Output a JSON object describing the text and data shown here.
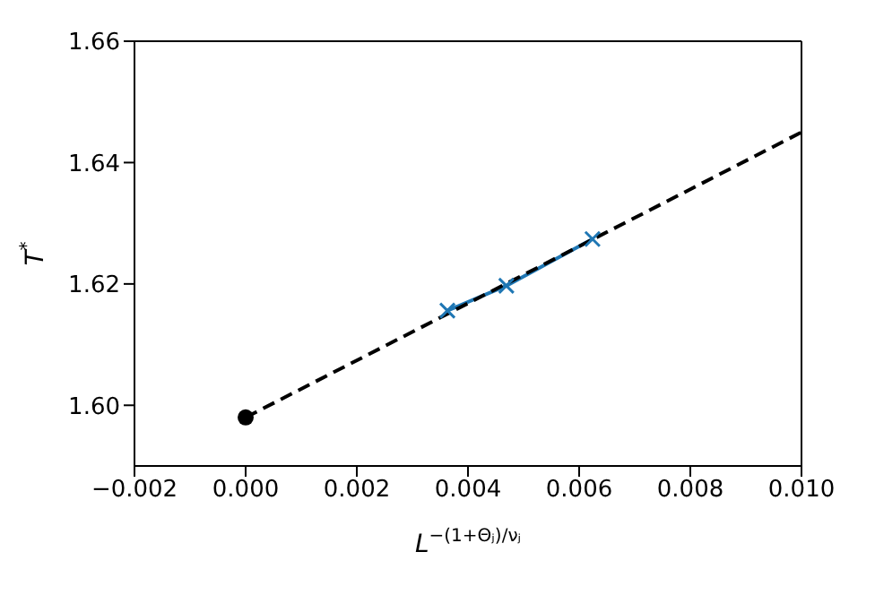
{
  "chart_data": {
    "type": "line",
    "xlabel": "L$^{−(1+Θⱼ)/νⱼ}$",
    "ylabel": "T$^{*}$",
    "xlim": [
      -0.002,
      0.01
    ],
    "xticks": [
      {
        "value": -0.002,
        "label": "−0.002"
      },
      {
        "value": 0,
        "label": "0.000"
      },
      {
        "value": 0.002,
        "label": "0.002"
      },
      {
        "value": 0.004,
        "label": "0.004"
      },
      {
        "value": 0.006,
        "label": "0.006"
      },
      {
        "value": 0.008,
        "label": "0.008"
      },
      {
        "value": 0.01,
        "label": "0.010"
      }
    ],
    "ylim": [
      1.59,
      1.66
    ],
    "yticks": [
      {
        "value": 1.6,
        "label": "1.60"
      },
      {
        "value": 1.62,
        "label": "1.62"
      },
      {
        "value": 1.64,
        "label": "1.64"
      },
      {
        "value": 1.66,
        "label": "1.66"
      }
    ],
    "series": [
      {
        "color": "#1f77b4",
        "marker": "cross",
        "line_style": "solid",
        "x": [
          0.00363,
          0.00469,
          0.00624
        ],
        "values": [
          1.6156,
          1.6197,
          1.6274
        ]
      },
      {
        "color": "#000000",
        "marker": "none",
        "line_style": "dashed",
        "x": [
          0,
          0.01
        ],
        "values": [
          1.598,
          1.645
        ]
      },
      {
        "type": "scatter",
        "color": "#000000",
        "marker": "circle",
        "x": [
          0
        ],
        "values": [
          1.598
        ]
      }
    ]
  }
}
